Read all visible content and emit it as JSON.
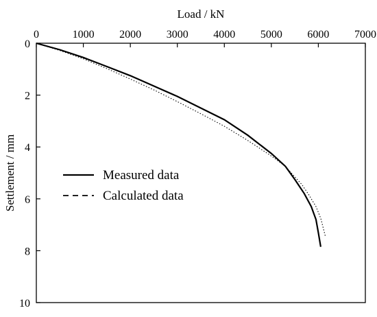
{
  "chart_data": {
    "type": "line",
    "title": "",
    "xlabel": "Load / kN",
    "ylabel": "Settlement / mm",
    "x_axis_position": "top",
    "y_axis_inverted": true,
    "xlim": [
      0,
      7000
    ],
    "ylim": [
      0,
      10
    ],
    "x_ticks": [
      "0",
      "1000",
      "2000",
      "3000",
      "4000",
      "5000",
      "6000",
      "7000"
    ],
    "y_ticks": [
      "0",
      "2",
      "4",
      "6",
      "8",
      "10"
    ],
    "grid": false,
    "legend_position": "center-left",
    "series": [
      {
        "name": "Measured data",
        "style": "solid",
        "color": "#000000",
        "x": [
          0,
          500,
          1000,
          1500,
          2000,
          2500,
          3000,
          3500,
          4000,
          4500,
          5000,
          5300,
          5500,
          5700,
          5850,
          5950,
          6000,
          6050
        ],
        "y": [
          0,
          0.25,
          0.55,
          0.9,
          1.25,
          1.65,
          2.05,
          2.5,
          2.95,
          3.55,
          4.25,
          4.75,
          5.25,
          5.8,
          6.3,
          6.8,
          7.3,
          7.85
        ]
      },
      {
        "name": "Calculated data",
        "style": "dashed",
        "color": "#000000",
        "x": [
          0,
          500,
          1000,
          1500,
          2000,
          2500,
          3000,
          3500,
          4000,
          4500,
          5000,
          5300,
          5500,
          5650,
          5800,
          5950,
          6050,
          6100,
          6150
        ],
        "y": [
          0,
          0.28,
          0.6,
          0.98,
          1.38,
          1.8,
          2.25,
          2.72,
          3.2,
          3.75,
          4.35,
          4.75,
          5.15,
          5.45,
          5.85,
          6.3,
          6.75,
          7.1,
          7.45
        ]
      }
    ]
  }
}
